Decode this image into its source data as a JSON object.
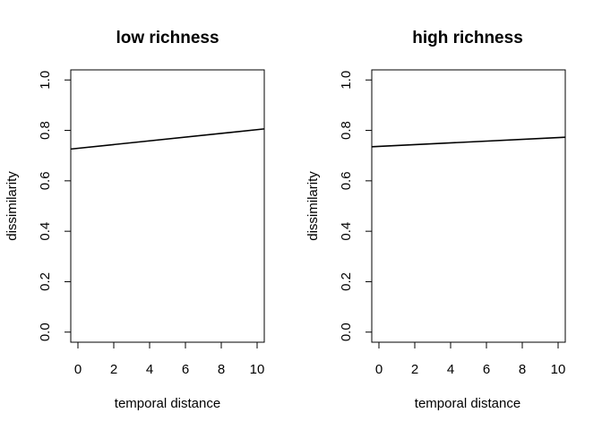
{
  "chart_data": [
    {
      "type": "line",
      "title": "low richness",
      "xlabel": "temporal distance",
      "ylabel": "dissimilarity",
      "xlim": [
        -0.4,
        10.4
      ],
      "ylim": [
        -0.04,
        1.04
      ],
      "x_ticks": [
        0,
        2,
        4,
        6,
        8,
        10
      ],
      "x_tick_labels": [
        "0",
        "2",
        "4",
        "6",
        "8",
        "10"
      ],
      "y_ticks": [
        0.0,
        0.2,
        0.4,
        0.6,
        0.8,
        1.0
      ],
      "y_tick_labels": [
        "0.0",
        "0.2",
        "0.4",
        "0.6",
        "0.8",
        "1.0"
      ],
      "grid": false,
      "series": [
        {
          "x": [
            -0.4,
            10.4
          ],
          "y": [
            0.726,
            0.806
          ],
          "color": "#000000"
        }
      ]
    },
    {
      "type": "line",
      "title": "high richness",
      "xlabel": "temporal distance",
      "ylabel": "dissimilarity",
      "xlim": [
        -0.4,
        10.4
      ],
      "ylim": [
        -0.04,
        1.04
      ],
      "x_ticks": [
        0,
        2,
        4,
        6,
        8,
        10
      ],
      "x_tick_labels": [
        "0",
        "2",
        "4",
        "6",
        "8",
        "10"
      ],
      "y_ticks": [
        0.0,
        0.2,
        0.4,
        0.6,
        0.8,
        1.0
      ],
      "y_tick_labels": [
        "0.0",
        "0.2",
        "0.4",
        "0.6",
        "0.8",
        "1.0"
      ],
      "grid": false,
      "series": [
        {
          "x": [
            -0.4,
            10.4
          ],
          "y": [
            0.735,
            0.773
          ],
          "color": "#000000"
        }
      ]
    }
  ]
}
